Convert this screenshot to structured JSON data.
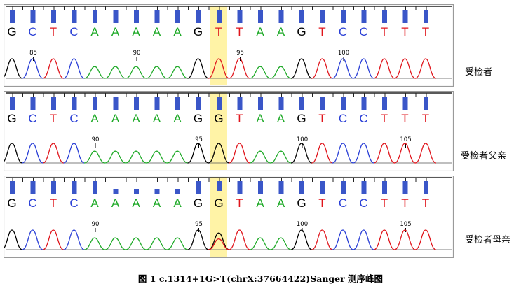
{
  "base_colors": {
    "G": "#000000",
    "C": "#2a3fd6",
    "T": "#e0151c",
    "A": "#1faa28"
  },
  "highlight_color": "#fff3a6",
  "tick_color": "#3a56c8",
  "panels": [
    {
      "id": "proband",
      "label": "受检者",
      "sequence": [
        "G",
        "C",
        "T",
        "C",
        "A",
        "A",
        "A",
        "A",
        "A",
        "G",
        "T",
        "T",
        "A",
        "A",
        "G",
        "T",
        "C",
        "C",
        "T",
        "T",
        "T"
      ],
      "highlight_index": 10,
      "position_markers": [
        {
          "label": "85",
          "base_index": 1
        },
        {
          "label": "90",
          "base_index": 6
        },
        {
          "label": "95",
          "base_index": 11
        },
        {
          "label": "100",
          "base_index": 16
        }
      ],
      "secondary_peaks": []
    },
    {
      "id": "father",
      "label": "受检者父亲",
      "sequence": [
        "G",
        "C",
        "T",
        "C",
        "A",
        "A",
        "A",
        "A",
        "A",
        "G",
        "G",
        "T",
        "A",
        "A",
        "G",
        "T",
        "C",
        "C",
        "T",
        "T",
        "T"
      ],
      "highlight_index": 10,
      "position_markers": [
        {
          "label": "90",
          "base_index": 4
        },
        {
          "label": "95",
          "base_index": 9
        },
        {
          "label": "100",
          "base_index": 14
        },
        {
          "label": "105",
          "base_index": 19
        }
      ],
      "secondary_peaks": []
    },
    {
      "id": "mother",
      "label": "受检者母亲",
      "sequence": [
        "G",
        "C",
        "T",
        "C",
        "A",
        "A",
        "A",
        "A",
        "A",
        "G",
        "G",
        "T",
        "A",
        "A",
        "G",
        "T",
        "C",
        "C",
        "T",
        "T",
        "T"
      ],
      "highlight_index": 10,
      "position_markers": [
        {
          "label": "90",
          "base_index": 4
        },
        {
          "label": "95",
          "base_index": 9
        },
        {
          "label": "100",
          "base_index": 14
        },
        {
          "label": "105",
          "base_index": 19
        }
      ],
      "secondary_peaks": [
        {
          "base_index": 10,
          "base": "T"
        }
      ]
    }
  ],
  "caption": "图 1   c.1314+1G>T(chrX:37664422)Sanger 测序峰图"
}
